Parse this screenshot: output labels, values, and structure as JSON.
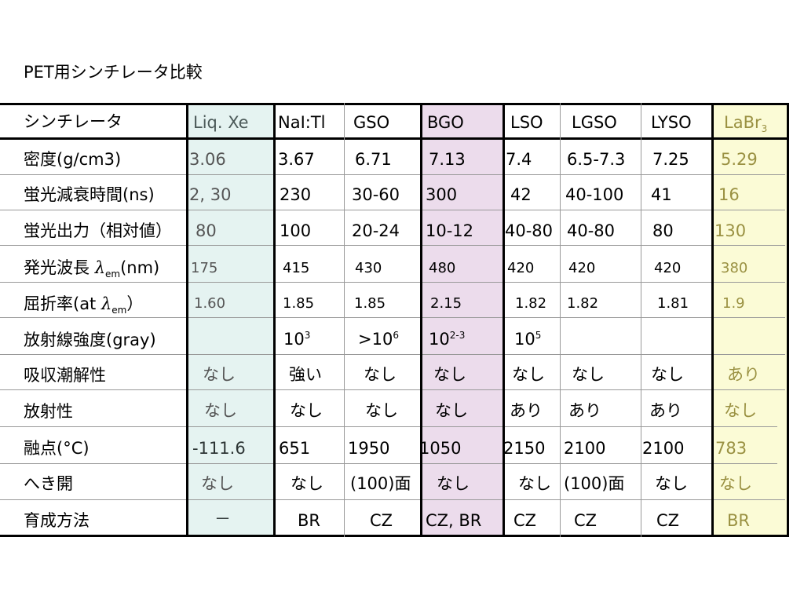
{
  "title": "PET用シンチレータ比較",
  "colors": {
    "liq_xe_bg": "#e5f3f1",
    "bgo_bg": "#ecdcec",
    "labr_bg": "#fbfbd6",
    "muted_text": "#555555",
    "labr_text": "#9a9142"
  },
  "table": {
    "header": {
      "row_label": "シンチレータ",
      "columns": {
        "liq_xe": "Liq. Xe",
        "nai": "NaI:Tl",
        "gso": "GSO",
        "bgo": "BGO",
        "lso": "LSO",
        "lgso": "LGSO",
        "lyso": "LYSO",
        "labr_base": "LaBr",
        "labr_sub": "3"
      }
    },
    "rows": [
      {
        "label": "密度(g/cm3)",
        "liq_xe": "3.06",
        "nai": "3.67",
        "gso": "6.71",
        "bgo": "7.13",
        "lso": "7.4",
        "lgso": "6.5-7.3",
        "lyso": "7.25",
        "labr": "5.29"
      },
      {
        "label": "蛍光減衰時間(ns)",
        "liq_xe": "2, 30",
        "nai": "230",
        "gso": "30-60",
        "bgo": "300",
        "lso": "42",
        "lgso": "40-100",
        "lyso": "41",
        "labr": "16"
      },
      {
        "label": "蛍光出力（相対値）",
        "liq_xe": "80",
        "nai": "100",
        "gso": "20-24",
        "bgo": "10-12",
        "lso": "40-80",
        "lgso": "40-80",
        "lyso": "80",
        "labr": "130"
      },
      {
        "label_pre": "発光波長",
        "label_lambda": "λ",
        "label_sub": "em",
        "label_post": "(nm)",
        "liq_xe": "175",
        "nai": "415",
        "gso": "430",
        "bgo": "480",
        "lso": "420",
        "lgso": "420",
        "lyso": "420",
        "labr": "380"
      },
      {
        "label_pre": "屈折率(at",
        "label_lambda": "λ",
        "label_sub": "em",
        "label_post": "）",
        "liq_xe": "1.60",
        "nai": "1.85",
        "gso": "1.85",
        "bgo": "2.15",
        "lso": "1.82",
        "lgso": "1.82",
        "lyso": "1.81",
        "labr": "1.9"
      },
      {
        "label": "放射線強度(gray)",
        "nai_base": "10",
        "nai_exp": "3",
        "gso_base": ">10",
        "gso_exp": "6",
        "bgo_base": "10",
        "bgo_exp": "2-3",
        "lso_base": "10",
        "lso_exp": "5"
      },
      {
        "label": "吸収潮解性",
        "liq_xe": "なし",
        "nai": "強い",
        "gso": "なし",
        "bgo": "なし",
        "lso": "なし",
        "lgso": "なし",
        "lyso": "なし",
        "labr": "あり"
      },
      {
        "label": "放射性",
        "liq_xe": "なし",
        "nai": "なし",
        "gso": "なし",
        "bgo": "なし",
        "lso": "あり",
        "lgso": "あり",
        "lyso": "あり",
        "labr": "なし"
      },
      {
        "label": "融点(°C)",
        "liq_xe": "-111.6",
        "nai": "651",
        "gso": "1950",
        "bgo": "1050",
        "lso": "2150",
        "lgso": "2100",
        "lyso": "2100",
        "labr": "783"
      },
      {
        "label": "へき開",
        "liq_xe": "なし",
        "nai": "なし",
        "gso": "(100)面",
        "bgo": "なし",
        "lso": "なし",
        "lgso": "(100)面",
        "lyso": "なし",
        "labr": "なし"
      },
      {
        "label": "育成方法",
        "liq_xe": "－",
        "nai": "BR",
        "gso": "CZ",
        "bgo": "CZ, BR",
        "lso": "CZ",
        "lgso": "CZ",
        "lyso": "CZ",
        "labr": "BR"
      }
    ]
  }
}
